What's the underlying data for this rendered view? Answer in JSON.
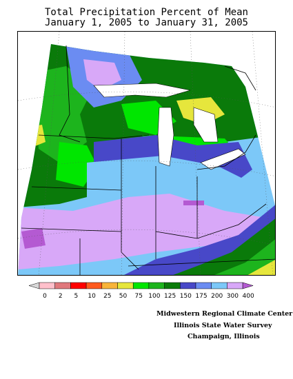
{
  "title_line1": "Total Precipitation Percent of Mean",
  "title_line2": "January 1, 2005 to January 31, 2005",
  "legend": {
    "labels": [
      "0",
      "2",
      "5",
      "10",
      "25",
      "50",
      "75",
      "100",
      "125",
      "150",
      "175",
      "200",
      "300",
      "400"
    ],
    "colors": [
      "#ffc0cb",
      "#e0787c",
      "#ff0000",
      "#ff5a1e",
      "#f8b43a",
      "#e6e63c",
      "#00e600",
      "#1db41d",
      "#0a7a0a",
      "#4848c8",
      "#6b8cf2",
      "#7cc8f8",
      "#d8a8f8",
      "#b45ad2"
    ]
  },
  "credits": {
    "line1": "Midwestern Regional Climate Center",
    "line2": "Illinois State Water Survey",
    "line3": "Champaign, Illinois"
  },
  "colors": {
    "dark_green": "#0a7a0a",
    "mid_green": "#1db41d",
    "bright_green": "#00e600",
    "yellow": "#e6e63c",
    "dark_blue": "#4848c8",
    "mid_blue": "#6b8cf2",
    "light_blue": "#7cc8f8",
    "lavender": "#d8a8f8",
    "purple": "#b45ad2"
  }
}
